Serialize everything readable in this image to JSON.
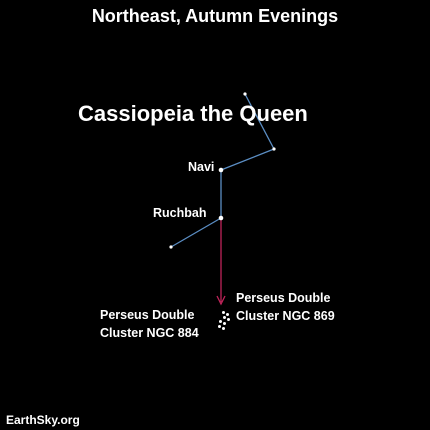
{
  "heading": "Northeast, Autumn Evenings",
  "constellation": {
    "name": "Cassiopeia the Queen",
    "line_color": "#5b8ec4",
    "star_color": "#ffffff",
    "stars": {
      "navi": "Navi",
      "ruchbah": "Ruchbah"
    }
  },
  "pointer": {
    "color": "#c0245a"
  },
  "clusters": {
    "left_line1": "Perseus Double",
    "left_line2": "Cluster NGC 884",
    "right_line1": "Perseus Double",
    "right_line2": "Cluster NGC 869"
  },
  "credit": "EarthSky.org"
}
